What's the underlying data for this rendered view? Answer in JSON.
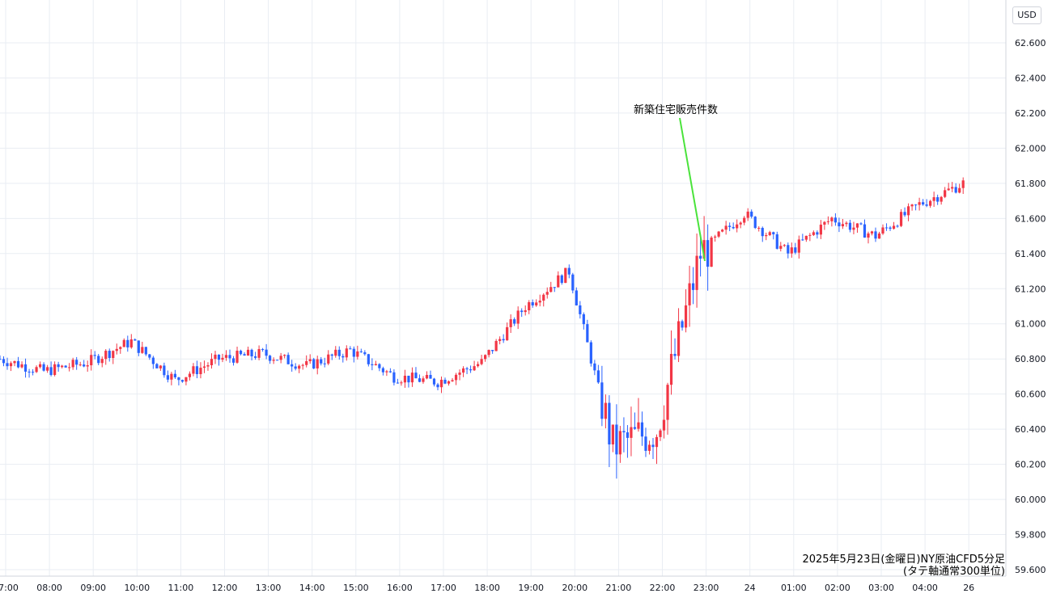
{
  "currency": "USD",
  "caption": {
    "line1": "2025年5月23日(金曜日)NY原油CFD5分足",
    "line2": "(タテ軸通常300単位)"
  },
  "annotation": {
    "label": "新築住宅販売件数"
  },
  "colors": {
    "up": "#f23645",
    "down": "#2962ff",
    "grid": "#e9edf3",
    "annotation_line": "#4ae33b",
    "text": "#131722"
  },
  "chart_data": {
    "type": "candlestick",
    "y_axis": {
      "min": 59.6,
      "max": 62.6,
      "ticks": [
        "62.600",
        "62.400",
        "62.200",
        "62.000",
        "61.800",
        "61.600",
        "61.400",
        "61.200",
        "61.000",
        "60.800",
        "60.600",
        "60.400",
        "60.200",
        "60.000",
        "59.800",
        "59.600"
      ]
    },
    "x_axis": {
      "ticks": [
        "07:00",
        "08:00",
        "09:00",
        "10:00",
        "11:00",
        "12:00",
        "13:00",
        "14:00",
        "15:00",
        "16:00",
        "17:00",
        "18:00",
        "19:00",
        "20:00",
        "21:00",
        "22:00",
        "23:00",
        "24",
        "01:00",
        "02:00",
        "03:00",
        "04:00",
        "26"
      ]
    },
    "hourly_close": [
      60.8,
      60.73,
      60.78,
      60.9,
      60.68,
      60.8,
      60.83,
      60.76,
      60.85,
      60.7,
      60.67,
      60.78,
      61.1,
      61.3,
      60.3,
      60.4,
      61.4,
      61.63,
      61.4,
      61.6,
      61.5,
      61.68,
      61.8
    ],
    "annotation": {
      "label": "新築住宅販売件数",
      "time": "23:00",
      "price": 61.37
    }
  }
}
